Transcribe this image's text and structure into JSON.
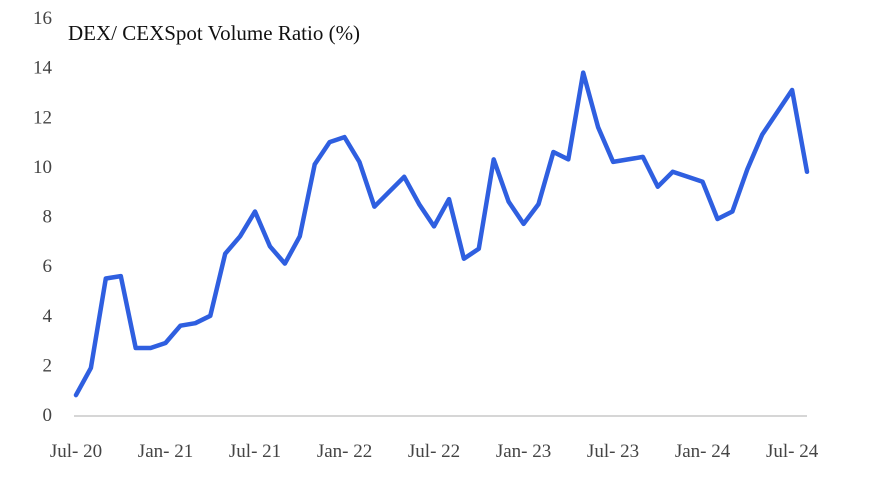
{
  "chart_data": {
    "type": "line",
    "title": "DEX/ CEXSpot Volume Ratio (%)",
    "xlabel": "",
    "ylabel": "",
    "ylim": [
      0,
      16
    ],
    "y_ticks": [
      "0",
      "2",
      "4",
      "6",
      "8",
      "10",
      "12",
      "14",
      "16"
    ],
    "x_tick_labels": [
      "Jul- 20",
      "Jan- 21",
      "Jul- 21",
      "Jan- 22",
      "Jul- 22",
      "Jan- 23",
      "Jul- 23",
      "Jan- 24",
      "Jul- 24"
    ],
    "grid": false,
    "legend": "none",
    "series": [
      {
        "color": "#2f5fe0",
        "x": [
          "2020-07",
          "2020-08",
          "2020-09",
          "2020-10",
          "2020-11",
          "2020-12",
          "2021-01",
          "2021-02",
          "2021-03",
          "2021-04",
          "2021-05",
          "2021-06",
          "2021-07",
          "2021-08",
          "2021-09",
          "2021-10",
          "2021-11",
          "2021-12",
          "2022-01",
          "2022-02",
          "2022-03",
          "2022-04",
          "2022-05",
          "2022-06",
          "2022-07",
          "2022-08",
          "2022-09",
          "2022-10",
          "2022-11",
          "2022-12",
          "2023-01",
          "2023-02",
          "2023-03",
          "2023-04",
          "2023-05",
          "2023-06",
          "2023-07",
          "2023-08",
          "2023-09",
          "2023-10",
          "2023-11",
          "2023-12",
          "2024-01",
          "2024-02",
          "2024-03",
          "2024-04",
          "2024-05",
          "2024-06",
          "2024-07",
          "2024-08"
        ],
        "values": [
          0.8,
          1.9,
          5.5,
          5.6,
          2.7,
          2.7,
          2.9,
          3.6,
          3.7,
          4.0,
          6.5,
          7.2,
          8.2,
          6.8,
          6.1,
          7.2,
          10.1,
          11.0,
          11.2,
          10.2,
          8.4,
          9.0,
          9.6,
          8.5,
          7.6,
          8.7,
          6.3,
          6.7,
          10.3,
          8.6,
          7.7,
          8.5,
          10.6,
          10.3,
          13.8,
          11.6,
          10.2,
          10.3,
          10.4,
          9.2,
          9.8,
          9.6,
          9.4,
          7.9,
          8.2,
          9.9,
          11.3,
          12.2,
          13.1,
          9.8
        ]
      }
    ]
  }
}
